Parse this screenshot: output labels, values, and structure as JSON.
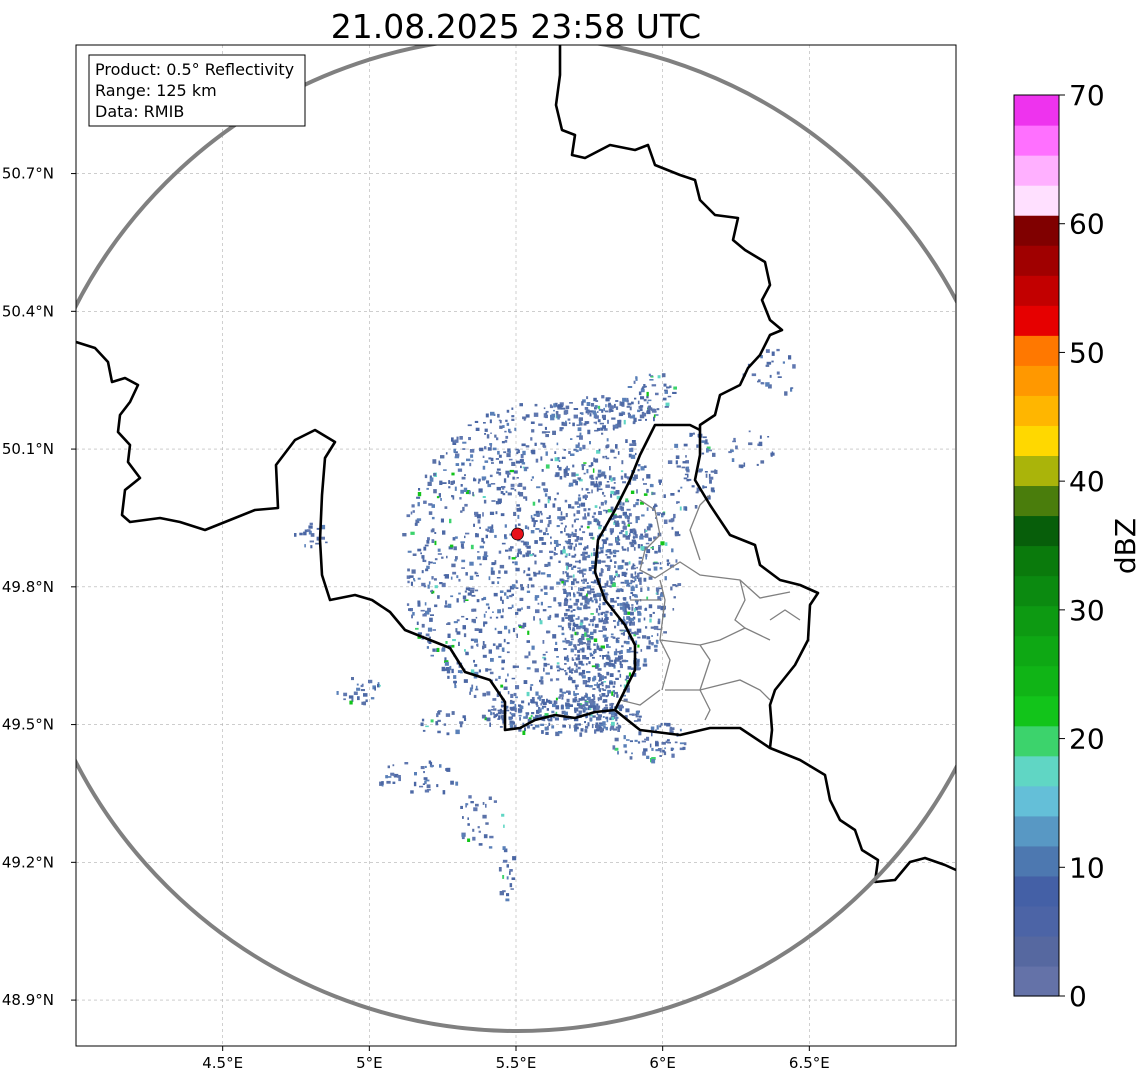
{
  "title": "21.08.2025 23:58 UTC",
  "info_box": {
    "line1": "Product: 0.5° Reflectivity",
    "line2": "Range: 125 km",
    "line3": "Data: RMIB"
  },
  "map": {
    "lon_range": [
      4.0,
      7.0
    ],
    "lat_range": [
      48.8,
      50.98
    ],
    "lon_ticks": [
      {
        "value": 4.5,
        "label": "4.5°E"
      },
      {
        "value": 5.0,
        "label": "5°E"
      },
      {
        "value": 5.5,
        "label": "5.5°E"
      },
      {
        "value": 6.0,
        "label": "6°E"
      },
      {
        "value": 6.5,
        "label": "6.5°E"
      }
    ],
    "lat_ticks": [
      {
        "value": 50.7,
        "label": "50.7°N"
      },
      {
        "value": 50.4,
        "label": "50.4°N"
      },
      {
        "value": 50.1,
        "label": "50.1°N"
      },
      {
        "value": 49.8,
        "label": "49.8°N"
      },
      {
        "value": 49.5,
        "label": "49.5°N"
      },
      {
        "value": 49.2,
        "label": "49.2°N"
      },
      {
        "value": 48.9,
        "label": "48.9°N"
      }
    ],
    "radar_site": {
      "lon": 5.505,
      "lat": 49.915
    },
    "range_ring_km": 125,
    "colors": {
      "border": "#000000",
      "admin": "#808080",
      "range_ring": "#808080",
      "radar_marker": "#e8121a",
      "grid": "#b0b0b0"
    }
  },
  "colorbar": {
    "label": "dBZ",
    "vmin": 0,
    "vmax": 70,
    "tick_labels": [
      "0",
      "10",
      "20",
      "30",
      "40",
      "50",
      "60",
      "70"
    ],
    "colors": [
      "#6472a8",
      "#5668a0",
      "#4c64a6",
      "#4460a6",
      "#4d78b0",
      "#5898c4",
      "#64bfd8",
      "#60d6c4",
      "#3cd36c",
      "#12c41a",
      "#10b416",
      "#0ea814",
      "#0d9a12",
      "#0b8a10",
      "#0a7a0c",
      "#075e0a",
      "#4a7d0c",
      "#aab40a",
      "#ffd800",
      "#ffb600",
      "#ff9800",
      "#ff7800",
      "#e60000",
      "#c20000",
      "#a00000",
      "#800000",
      "#ffe0ff",
      "#ffb0ff",
      "#ff70ff",
      "#ee33ee"
    ]
  }
}
